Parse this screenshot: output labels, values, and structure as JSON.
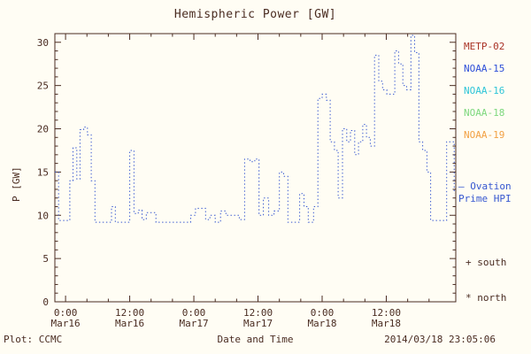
{
  "colors": {
    "text": "#4a2c22",
    "frame": "#4a2c22",
    "line": "#3657d0",
    "ovation": "#3657d0"
  },
  "chart_data": {
    "type": "line",
    "title": "Hemispheric Power [GW]",
    "xlabel": "Date and Time",
    "ylabel": "P [GW]",
    "ylim": [
      0,
      31
    ],
    "xlim_hours": [
      -2,
      73
    ],
    "y_ticks": [
      0,
      5,
      10,
      15,
      20,
      25,
      30
    ],
    "x_ticks": [
      {
        "hour": 0,
        "time": "0:00",
        "date": "Mar16"
      },
      {
        "hour": 12,
        "time": "12:00",
        "date": "Mar16"
      },
      {
        "hour": 24,
        "time": "0:00",
        "date": "Mar17"
      },
      {
        "hour": 36,
        "time": "12:00",
        "date": "Mar17"
      },
      {
        "hour": 48,
        "time": "0:00",
        "date": "Mar18"
      },
      {
        "hour": 60,
        "time": "12:00",
        "date": "Mar18"
      }
    ],
    "series": [
      {
        "name": "Ovation Prime HPI",
        "style": "dotted-step",
        "color": "#3657d0",
        "points": [
          [
            -2.0,
            15.0
          ],
          [
            -1.3,
            9.4
          ],
          [
            0.2,
            9.4
          ],
          [
            0.8,
            14.0
          ],
          [
            1.4,
            17.8
          ],
          [
            2.1,
            14.2
          ],
          [
            2.7,
            19.9
          ],
          [
            3.4,
            20.2
          ],
          [
            4.1,
            19.3
          ],
          [
            4.8,
            14.0
          ],
          [
            5.5,
            9.2
          ],
          [
            8.0,
            9.2
          ],
          [
            8.6,
            11.0
          ],
          [
            9.3,
            9.2
          ],
          [
            11.4,
            9.2
          ],
          [
            12.0,
            17.5
          ],
          [
            12.8,
            10.2
          ],
          [
            13.6,
            10.6
          ],
          [
            14.3,
            9.5
          ],
          [
            15.1,
            10.3
          ],
          [
            16.2,
            10.3
          ],
          [
            16.9,
            9.2
          ],
          [
            22.8,
            9.2
          ],
          [
            23.4,
            10.0
          ],
          [
            24.3,
            10.8
          ],
          [
            25.4,
            10.8
          ],
          [
            26.2,
            9.5
          ],
          [
            27.0,
            10.0
          ],
          [
            28.0,
            9.2
          ],
          [
            29.0,
            10.5
          ],
          [
            30.0,
            10.0
          ],
          [
            31.5,
            10.0
          ],
          [
            32.5,
            9.5
          ],
          [
            33.5,
            16.5
          ],
          [
            34.5,
            16.2
          ],
          [
            35.4,
            16.5
          ],
          [
            36.2,
            10.0
          ],
          [
            37.0,
            12.0
          ],
          [
            38.0,
            10.0
          ],
          [
            39.0,
            10.5
          ],
          [
            40.0,
            15.0
          ],
          [
            40.8,
            14.5
          ],
          [
            41.6,
            9.2
          ],
          [
            43.0,
            9.2
          ],
          [
            43.8,
            12.5
          ],
          [
            44.6,
            11.0
          ],
          [
            45.4,
            9.2
          ],
          [
            46.4,
            11.0
          ],
          [
            47.2,
            23.5
          ],
          [
            48.0,
            24.0
          ],
          [
            48.8,
            23.3
          ],
          [
            49.5,
            18.5
          ],
          [
            50.3,
            17.5
          ],
          [
            51.0,
            12.0
          ],
          [
            51.8,
            20.0
          ],
          [
            52.6,
            18.5
          ],
          [
            53.3,
            19.8
          ],
          [
            54.1,
            17.0
          ],
          [
            54.8,
            18.5
          ],
          [
            55.6,
            20.5
          ],
          [
            56.3,
            19.0
          ],
          [
            57.0,
            18.0
          ],
          [
            57.8,
            28.5
          ],
          [
            58.6,
            25.5
          ],
          [
            59.3,
            24.5
          ],
          [
            60.1,
            24.0
          ],
          [
            60.9,
            24.0
          ],
          [
            61.6,
            29.0
          ],
          [
            62.3,
            27.5
          ],
          [
            63.1,
            25.0
          ],
          [
            63.8,
            24.5
          ],
          [
            64.6,
            30.8
          ],
          [
            65.3,
            28.8
          ],
          [
            66.1,
            18.5
          ],
          [
            66.8,
            17.5
          ],
          [
            67.6,
            15.0
          ],
          [
            68.3,
            9.4
          ],
          [
            70.6,
            9.4
          ],
          [
            71.3,
            18.5
          ],
          [
            72.4,
            18.5
          ],
          [
            72.7,
            12.5
          ]
        ]
      }
    ],
    "legend_position": "right-outside",
    "grid": false
  },
  "legend": {
    "items": [
      {
        "label": "METP-02",
        "color": "#a93226"
      },
      {
        "label": "NOAA-15",
        "color": "#2e4fd8"
      },
      {
        "label": "NOAA-16",
        "color": "#2fc5d8"
      },
      {
        "label": "NOAA-18",
        "color": "#7ed87e"
      },
      {
        "label": "NOAA-19",
        "color": "#f2a144"
      }
    ]
  },
  "annotations": {
    "ovation_line1": "— Ovation",
    "ovation_line2": "Prime HPI",
    "south": "+ south",
    "north": "* north"
  },
  "footer": {
    "left": "Plot: CCMC",
    "right": "2014/03/18 23:05:06"
  }
}
